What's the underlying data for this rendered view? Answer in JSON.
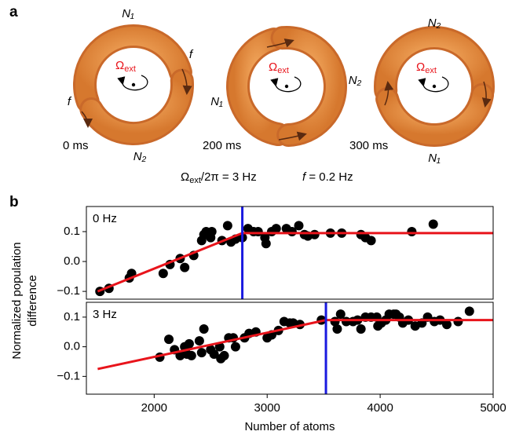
{
  "panel_a": {
    "label": "a",
    "rings": [
      {
        "time": "0 ms",
        "labels": [
          "N₁",
          "N₂"
        ],
        "flows": [
          "f",
          "f"
        ],
        "omega": "Ω",
        "omega_sub": "ext"
      },
      {
        "time": "200 ms",
        "labels": [
          "N₁",
          "N₂"
        ],
        "omega": "Ω",
        "omega_sub": "ext"
      },
      {
        "time": "300 ms",
        "labels": [
          "N₂",
          "N₁"
        ],
        "omega": "Ω",
        "omega_sub": "ext"
      }
    ],
    "caption_omega": "Ω",
    "caption_omega_sub": "ext",
    "caption_rate": "/2π = 3 Hz",
    "caption_f": "f",
    "caption_f_value": " = 0.2 Hz"
  },
  "panel_b": {
    "label": "b"
  },
  "chart_data": [
    {
      "type": "scatter",
      "annotation": "0 Hz",
      "ylabel": [
        "Normalized population",
        "difference"
      ],
      "color": "#000000",
      "xlim": [
        1400,
        5000
      ],
      "ylim": [
        -0.126,
        0.184
      ],
      "yticks": [
        0.1,
        {
          "value": 0,
          "label": "0.0"
        },
        {
          "value": -0.1,
          "label": "−0.1"
        }
      ],
      "x": [
        1520,
        1600,
        1780,
        1800,
        2080,
        2140,
        2230,
        2270,
        2350,
        2420,
        2440,
        2460,
        2510,
        2500,
        2600,
        2650,
        2680,
        2720,
        2780,
        2830,
        2880,
        2920,
        2980,
        2990,
        3040,
        3080,
        3170,
        3220,
        3280,
        3330,
        3360,
        3420,
        3560,
        3660,
        3830,
        3870,
        3920,
        4280,
        4470
      ],
      "values": [
        -0.1,
        -0.09,
        -0.055,
        -0.04,
        -0.04,
        -0.01,
        0.01,
        -0.02,
        0.02,
        0.07,
        0.09,
        0.1,
        0.1,
        0.08,
        0.07,
        0.12,
        0.065,
        0.075,
        0.08,
        0.11,
        0.1,
        0.1,
        0.08,
        0.06,
        0.1,
        0.11,
        0.11,
        0.1,
        0.12,
        0.09,
        0.085,
        0.09,
        0.095,
        0.095,
        0.09,
        0.08,
        0.07,
        0.1,
        0.125
      ],
      "fit": {
        "color": "#e8141b",
        "x": [
          1500,
          2780,
          5000
        ],
        "y": [
          -0.1,
          0.095,
          0.095
        ]
      },
      "threshold": {
        "color": "#1a1ae0",
        "x": 2780
      }
    },
    {
      "type": "scatter",
      "annotation": "3 Hz",
      "xlabel": "Number of atoms",
      "color": "#000000",
      "xlim": [
        1400,
        5000
      ],
      "ylim": [
        -0.16,
        0.15
      ],
      "xticks": [
        2000,
        3000,
        4000,
        5000
      ],
      "yticks": [
        0.1,
        {
          "value": 0,
          "label": "0.0"
        },
        {
          "value": -0.1,
          "label": "−0.1"
        }
      ],
      "x": [
        2050,
        2130,
        2180,
        2230,
        2270,
        2290,
        2310,
        2330,
        2400,
        2420,
        2440,
        2500,
        2530,
        2580,
        2590,
        2620,
        2660,
        2700,
        2720,
        2800,
        2840,
        2900,
        3000,
        3040,
        3100,
        3150,
        3200,
        3230,
        3290,
        3480,
        3600,
        3620,
        3650,
        3700,
        3760,
        3800,
        3830,
        3870,
        3920,
        3970,
        3980,
        4010,
        4050,
        4080,
        4120,
        4140,
        4170,
        4200,
        4250,
        4310,
        4370,
        4420,
        4480,
        4530,
        4590,
        4690,
        4790
      ],
      "values": [
        -0.035,
        0.025,
        -0.01,
        -0.03,
        0,
        -0.025,
        0.01,
        -0.03,
        0.02,
        -0.02,
        0.06,
        -0.01,
        -0.025,
        0,
        -0.04,
        -0.03,
        0.03,
        0.03,
        0,
        0.03,
        0.045,
        0.05,
        0.03,
        0.04,
        0.055,
        0.085,
        0.08,
        0.08,
        0.075,
        0.09,
        0.085,
        0.06,
        0.11,
        0.085,
        0.085,
        0.09,
        0.06,
        0.1,
        0.1,
        0.1,
        0.07,
        0.08,
        0.09,
        0.11,
        0.11,
        0.11,
        0.1,
        0.08,
        0.09,
        0.07,
        0.08,
        0.1,
        0.085,
        0.09,
        0.075,
        0.085,
        0.12
      ],
      "fit": {
        "color": "#e8141b",
        "x": [
          1500,
          3520,
          5000
        ],
        "y": [
          -0.075,
          0.09,
          0.09
        ]
      },
      "threshold": {
        "color": "#1a1ae0",
        "x": 3520
      }
    }
  ]
}
